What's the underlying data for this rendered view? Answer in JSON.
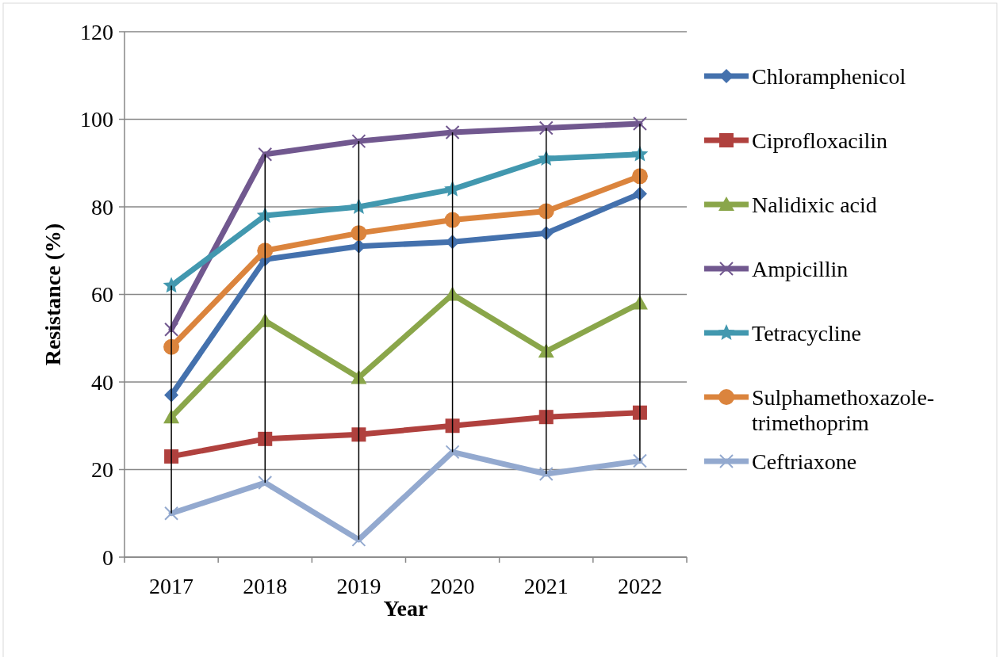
{
  "chart_data": {
    "type": "line",
    "xlabel": "Year",
    "ylabel": "Resistance (%)",
    "categories": [
      "2017",
      "2018",
      "2019",
      "2020",
      "2021",
      "2022"
    ],
    "ylim": [
      0,
      120
    ],
    "yticks": [
      0,
      20,
      40,
      60,
      80,
      100,
      120
    ],
    "grid": "y",
    "legend": "right",
    "line_style": "solid",
    "series": [
      {
        "name": "Chloramphenicol",
        "color": "#4471ad",
        "marker": "diamond",
        "values": [
          37,
          68,
          71,
          72,
          74,
          83
        ]
      },
      {
        "name": "Ciprofloxacilin",
        "color": "#b0413e",
        "marker": "square",
        "values": [
          23,
          27,
          28,
          30,
          32,
          33
        ]
      },
      {
        "name": "Nalidixic acid",
        "color": "#8aa64a",
        "marker": "triangle",
        "values": [
          32,
          54,
          41,
          60,
          47,
          58
        ]
      },
      {
        "name": "Ampicillin",
        "color": "#71588f",
        "marker": "cross",
        "values": [
          52,
          92,
          95,
          97,
          98,
          99
        ]
      },
      {
        "name": "Tetracycline",
        "color": "#4298af",
        "marker": "star",
        "values": [
          62,
          78,
          80,
          84,
          91,
          92
        ]
      },
      {
        "name": "Sulphamethoxazole-trimethoprim",
        "color": "#db843d",
        "marker": "circle",
        "values": [
          48,
          70,
          74,
          77,
          79,
          87
        ]
      },
      {
        "name": "Ceftriaxone",
        "color": "#93a9cf",
        "marker": "cross",
        "values": [
          10,
          17,
          4,
          24,
          19,
          22
        ]
      },
      {
        "type": "bar",
        "color": "#000000",
        "base": [
          10,
          17,
          4,
          24,
          19,
          22
        ],
        "values": [
          52,
          75,
          91,
          73,
          79,
          77
        ]
      }
    ]
  }
}
